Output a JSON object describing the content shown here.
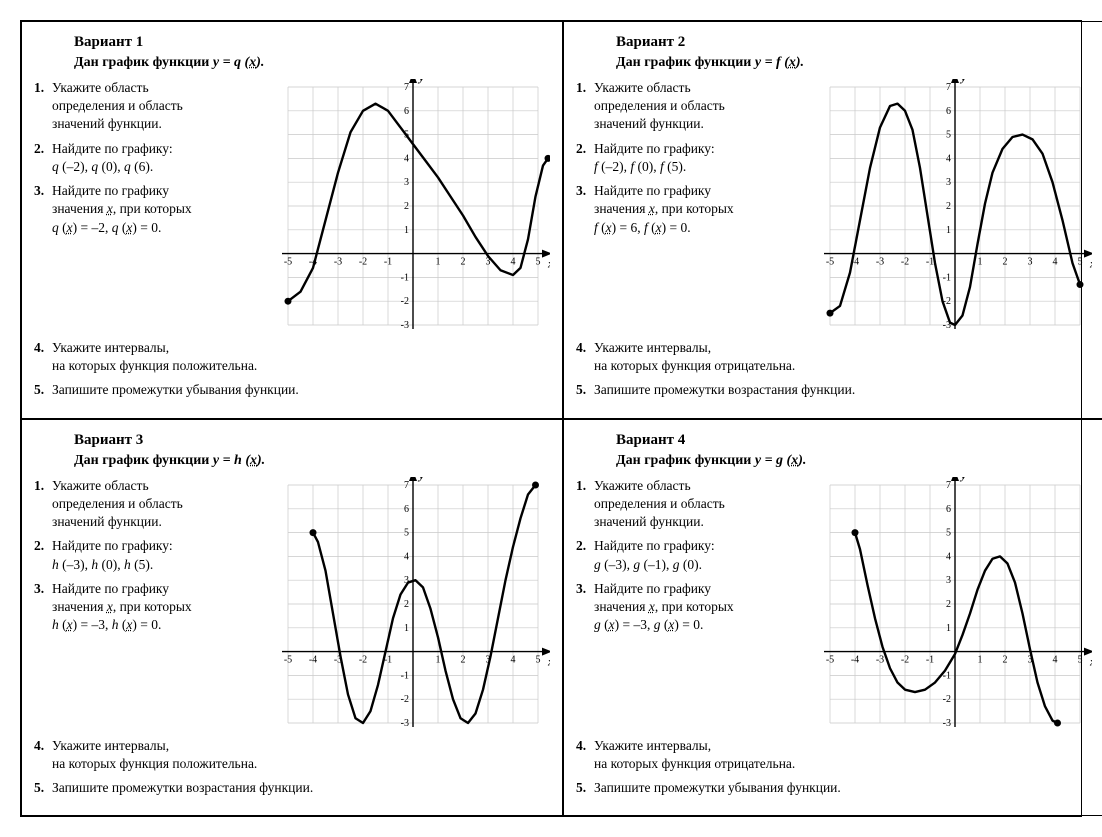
{
  "page": {
    "font_family": "Times New Roman",
    "text_color": "#000000",
    "background_color": "#ffffff",
    "border_color": "#000000"
  },
  "chart_defaults": {
    "grid_color": "#c9c9c9",
    "axis_color": "#000000",
    "curve_color": "#000000",
    "curve_width": 2.4,
    "endpoint_radius": 3.5,
    "x_axis_label": "x",
    "y_axis_label": "y",
    "xlim": [
      -5,
      5
    ],
    "x_tick_step": 1,
    "label_fontsize": 10,
    "axis_label_fontsize": 12
  },
  "variants": [
    {
      "id": 1,
      "title": "Вариант 1",
      "subtitle_prefix": "Дан график функции ",
      "subtitle_func": "y = q (x).",
      "func_letter": "q",
      "questions_side": [
        {
          "n": "1.",
          "lines": [
            "Укажите область",
            "определения и область",
            "значений функции."
          ]
        },
        {
          "n": "2.",
          "lines": [
            "Найдите по графику:",
            "q (–2),   q (0),   q (6)."
          ]
        },
        {
          "n": "3.",
          "lines": [
            "Найдите по графику",
            "значения x, при которых",
            "q (x) = –2,   q (x) = 0."
          ]
        }
      ],
      "questions_below": [
        {
          "n": "4.",
          "lines": [
            "Укажите интервалы,",
            "на которых функция положительна."
          ]
        },
        {
          "n": "5.",
          "lines": [
            "Запишите промежутки убывания функции."
          ]
        }
      ],
      "chart": {
        "ylim": [
          -3,
          7
        ],
        "y_ticks": [
          -3,
          -2,
          -1,
          1,
          2,
          3,
          4,
          5,
          6,
          7
        ],
        "x_ticks": [
          -5,
          -4,
          -3,
          -2,
          -1,
          1,
          2,
          3,
          4,
          5
        ],
        "curve": [
          [
            -5,
            -2
          ],
          [
            -4.5,
            -1.6
          ],
          [
            -4,
            -0.6
          ],
          [
            -3.5,
            1.4
          ],
          [
            -3,
            3.4
          ],
          [
            -2.5,
            5.1
          ],
          [
            -2,
            6.0
          ],
          [
            -1.5,
            6.3
          ],
          [
            -1,
            6.0
          ],
          [
            -0.5,
            5.3
          ],
          [
            0,
            4.6
          ],
          [
            0.5,
            3.9
          ],
          [
            1,
            3.2
          ],
          [
            1.5,
            2.4
          ],
          [
            2,
            1.6
          ],
          [
            2.5,
            0.7
          ],
          [
            3,
            -0.1
          ],
          [
            3.5,
            -0.7
          ],
          [
            4,
            -0.9
          ],
          [
            4.3,
            -0.6
          ],
          [
            4.6,
            0.6
          ],
          [
            4.9,
            2.4
          ],
          [
            5.2,
            3.7
          ],
          [
            5.4,
            4.0
          ]
        ],
        "endpoints": [
          [
            -5,
            -2
          ],
          [
            5.4,
            4.0
          ]
        ]
      }
    },
    {
      "id": 2,
      "title": "Вариант 2",
      "subtitle_prefix": "Дан график функции ",
      "subtitle_func": "y = f (x).",
      "func_letter": "f",
      "questions_side": [
        {
          "n": "1.",
          "lines": [
            "Укажите область",
            "определения и область",
            "значений функции."
          ]
        },
        {
          "n": "2.",
          "lines": [
            "Найдите по графику:",
            "f (–2),   f (0),   f (5)."
          ]
        },
        {
          "n": "3.",
          "lines": [
            "Найдите по графику",
            "значения x, при которых",
            "f (x) = 6,   f (x) = 0."
          ]
        }
      ],
      "questions_below": [
        {
          "n": "4.",
          "lines": [
            "Укажите интервалы,",
            "на которых функция отрицательна."
          ]
        },
        {
          "n": "5.",
          "lines": [
            "Запишите промежутки возрастания функции."
          ]
        }
      ],
      "chart": {
        "ylim": [
          -3,
          7
        ],
        "y_ticks": [
          -3,
          -2,
          -1,
          1,
          2,
          3,
          4,
          5,
          6,
          7
        ],
        "x_ticks": [
          -5,
          -4,
          -3,
          -2,
          -1,
          1,
          2,
          3,
          4,
          5
        ],
        "curve": [
          [
            -5,
            -2.5
          ],
          [
            -4.6,
            -2.2
          ],
          [
            -4.2,
            -0.8
          ],
          [
            -3.8,
            1.4
          ],
          [
            -3.4,
            3.6
          ],
          [
            -3,
            5.3
          ],
          [
            -2.6,
            6.2
          ],
          [
            -2.3,
            6.3
          ],
          [
            -2,
            6.0
          ],
          [
            -1.7,
            5.2
          ],
          [
            -1.4,
            3.6
          ],
          [
            -1.1,
            1.6
          ],
          [
            -0.8,
            -0.4
          ],
          [
            -0.5,
            -2.0
          ],
          [
            -0.2,
            -2.9
          ],
          [
            0,
            -3.0
          ],
          [
            0.3,
            -2.6
          ],
          [
            0.6,
            -1.4
          ],
          [
            0.9,
            0.4
          ],
          [
            1.2,
            2.1
          ],
          [
            1.5,
            3.4
          ],
          [
            1.9,
            4.4
          ],
          [
            2.3,
            4.9
          ],
          [
            2.7,
            5.0
          ],
          [
            3.1,
            4.8
          ],
          [
            3.5,
            4.2
          ],
          [
            3.9,
            3.0
          ],
          [
            4.3,
            1.4
          ],
          [
            4.7,
            -0.4
          ],
          [
            5,
            -1.3
          ]
        ],
        "endpoints": [
          [
            -5,
            -2.5
          ],
          [
            5,
            -1.3
          ]
        ]
      }
    },
    {
      "id": 3,
      "title": "Вариант 3",
      "subtitle_prefix": "Дан график функции ",
      "subtitle_func": "y = h (x).",
      "func_letter": "h",
      "questions_side": [
        {
          "n": "1.",
          "lines": [
            "Укажите область",
            "определения и область",
            "значений функции."
          ]
        },
        {
          "n": "2.",
          "lines": [
            "Найдите по графику:",
            "h (–3),   h (0),   h (5)."
          ]
        },
        {
          "n": "3.",
          "lines": [
            "Найдите по графику",
            "значения x, при которых",
            "h (x) = –3,   h (x) = 0."
          ]
        }
      ],
      "questions_below": [
        {
          "n": "4.",
          "lines": [
            "Укажите интервалы,",
            "на которых функция положительна."
          ]
        },
        {
          "n": "5.",
          "lines": [
            "Запишите промежутки возрастания функции."
          ]
        }
      ],
      "chart": {
        "ylim": [
          -3,
          7
        ],
        "y_ticks": [
          -3,
          -2,
          -1,
          1,
          2,
          3,
          4,
          5,
          6,
          7
        ],
        "x_ticks": [
          -5,
          -4,
          -3,
          -2,
          -1,
          1,
          2,
          3,
          4,
          5
        ],
        "curve": [
          [
            -4,
            5.0
          ],
          [
            -3.8,
            4.6
          ],
          [
            -3.5,
            3.4
          ],
          [
            -3.2,
            1.6
          ],
          [
            -2.9,
            -0.2
          ],
          [
            -2.6,
            -1.8
          ],
          [
            -2.3,
            -2.8
          ],
          [
            -2,
            -3.0
          ],
          [
            -1.7,
            -2.5
          ],
          [
            -1.4,
            -1.4
          ],
          [
            -1.1,
            0.0
          ],
          [
            -0.8,
            1.4
          ],
          [
            -0.5,
            2.4
          ],
          [
            -0.2,
            2.9
          ],
          [
            0.1,
            3.0
          ],
          [
            0.4,
            2.7
          ],
          [
            0.7,
            1.8
          ],
          [
            1.0,
            0.6
          ],
          [
            1.3,
            -0.8
          ],
          [
            1.6,
            -2.0
          ],
          [
            1.9,
            -2.8
          ],
          [
            2.2,
            -3.0
          ],
          [
            2.5,
            -2.6
          ],
          [
            2.8,
            -1.6
          ],
          [
            3.1,
            -0.2
          ],
          [
            3.4,
            1.4
          ],
          [
            3.7,
            3.0
          ],
          [
            4.0,
            4.4
          ],
          [
            4.3,
            5.6
          ],
          [
            4.6,
            6.6
          ],
          [
            4.9,
            7.0
          ]
        ],
        "endpoints": [
          [
            -4,
            5.0
          ],
          [
            4.9,
            7.0
          ]
        ]
      }
    },
    {
      "id": 4,
      "title": "Вариант 4",
      "subtitle_prefix": "Дан график функции ",
      "subtitle_func": "y = g (x).",
      "func_letter": "g",
      "questions_side": [
        {
          "n": "1.",
          "lines": [
            "Укажите область",
            "определения и область",
            "значений функции."
          ]
        },
        {
          "n": "2.",
          "lines": [
            "Найдите по графику:",
            "g (–3),   g (–1),   g (0)."
          ]
        },
        {
          "n": "3.",
          "lines": [
            "Найдите по графику",
            "значения x, при которых",
            "g (x) = –3,   g (x) = 0."
          ]
        }
      ],
      "questions_below": [
        {
          "n": "4.",
          "lines": [
            "Укажите интервалы,",
            "на которых функция отрицательна."
          ]
        },
        {
          "n": "5.",
          "lines": [
            "Запишите промежутки убывания функции."
          ]
        }
      ],
      "chart": {
        "ylim": [
          -3,
          7
        ],
        "y_ticks": [
          -3,
          -2,
          -1,
          1,
          2,
          3,
          4,
          5,
          6,
          7
        ],
        "x_ticks": [
          -5,
          -4,
          -3,
          -2,
          -1,
          1,
          2,
          3,
          4,
          5
        ],
        "curve": [
          [
            -4,
            5.0
          ],
          [
            -3.8,
            4.3
          ],
          [
            -3.5,
            2.8
          ],
          [
            -3.2,
            1.4
          ],
          [
            -2.9,
            0.2
          ],
          [
            -2.6,
            -0.7
          ],
          [
            -2.3,
            -1.3
          ],
          [
            -2,
            -1.6
          ],
          [
            -1.6,
            -1.7
          ],
          [
            -1.2,
            -1.6
          ],
          [
            -0.8,
            -1.3
          ],
          [
            -0.4,
            -0.8
          ],
          [
            0,
            -0.1
          ],
          [
            0.3,
            0.7
          ],
          [
            0.6,
            1.6
          ],
          [
            0.9,
            2.6
          ],
          [
            1.2,
            3.4
          ],
          [
            1.5,
            3.9
          ],
          [
            1.8,
            4.0
          ],
          [
            2.1,
            3.7
          ],
          [
            2.4,
            2.9
          ],
          [
            2.7,
            1.6
          ],
          [
            3.0,
            0.1
          ],
          [
            3.3,
            -1.3
          ],
          [
            3.6,
            -2.3
          ],
          [
            3.9,
            -2.9
          ],
          [
            4.1,
            -3.0
          ]
        ],
        "endpoints": [
          [
            -4,
            5.0
          ],
          [
            4.1,
            -3.0
          ]
        ]
      }
    }
  ]
}
